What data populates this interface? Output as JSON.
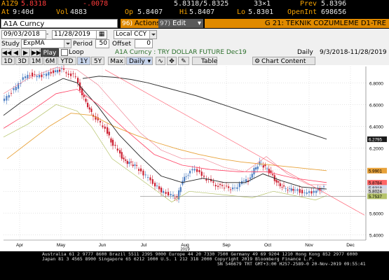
{
  "quote": {
    "ticker": "A1Z9",
    "last": "5.8318",
    "change": "-.0078",
    "bid_ask": "5.8318/5.8325",
    "size": "33×1",
    "prev_label": "Prev",
    "prev": "5.8396",
    "at_label": "At",
    "time": "9:40d",
    "vol_label": "Vol",
    "vol": "4883",
    "op_label": "Op",
    "open": "5.8407",
    "hi_label": "Hi",
    "high": "5.8407",
    "lo_label": "Lo",
    "low": "5.8301",
    "oi_label": "OpenInt",
    "open_interest": "698656"
  },
  "command": {
    "security": "A1A Curncy",
    "actions_num": "96)",
    "actions_label": "Actions",
    "edit_num": "97)",
    "edit_label": "Edit",
    "title": "G 21: TEKNIK COZUMLEME D1-TRE"
  },
  "controls": {
    "date_from": "09/03/2018",
    "date_to": "11/28/2019",
    "date_sep": "-",
    "currency": "Local CCY",
    "study_label": "Study",
    "study": "ExpMA",
    "period_label": "Period",
    "period": "50",
    "offset_label": "Offset",
    "offset": "0",
    "play_label": "Play",
    "loop_label": "Loop",
    "security_desc": "A1A Curncy : TRY DOLLAR FUTURE Dec19",
    "frequency": "Daily",
    "range_text": "9/3/2018-11/28/2019"
  },
  "toolbar": {
    "ranges": [
      "1D",
      "3D",
      "1M",
      "6M",
      "YTD",
      "1Y",
      "5Y",
      "Max"
    ],
    "interval": "Daily",
    "table_label": "Table",
    "chart_content_label": "Chart Content"
  },
  "chart_data": {
    "type": "line",
    "x_labels": [
      "Apr",
      "May",
      "Jun",
      "Jul",
      "Aug",
      "Sep",
      "Oct",
      "Nov",
      "Dec"
    ],
    "year_label": "2019",
    "y_ticks": [
      "6.8000",
      "6.6000",
      "6.4000",
      "6.2000",
      "6.0000",
      "5.8000",
      "5.6000",
      "5.4000"
    ],
    "ylim": [
      5.35,
      6.95
    ],
    "price_labels": [
      {
        "value": "6.2795",
        "color": "#1a1a1a"
      },
      {
        "value": "5.9901",
        "color": "#e8a23a"
      },
      {
        "value": "5.8784",
        "color": "#ff6666"
      },
      {
        "value": "5.8318",
        "color": "#cfd8ea"
      },
      {
        "value": "5.8024",
        "color": "#d9d9d9"
      },
      {
        "value": "5.7537",
        "color": "#b5c36a"
      }
    ],
    "series": [
      {
        "color": "#333333",
        "values": [
          6.84,
          6.86,
          6.85,
          6.83,
          6.8,
          6.76,
          6.72,
          6.68,
          6.63,
          6.58,
          6.53,
          6.48,
          6.43,
          6.38,
          6.33,
          6.28
        ]
      },
      {
        "color": "#e8a23a",
        "values": [
          6.1,
          6.25,
          6.4,
          6.52,
          6.5,
          6.4,
          6.32,
          6.25,
          6.19,
          6.14,
          6.1,
          6.07,
          6.05,
          6.03,
          6.01,
          5.99
        ]
      }
    ]
  }
}
